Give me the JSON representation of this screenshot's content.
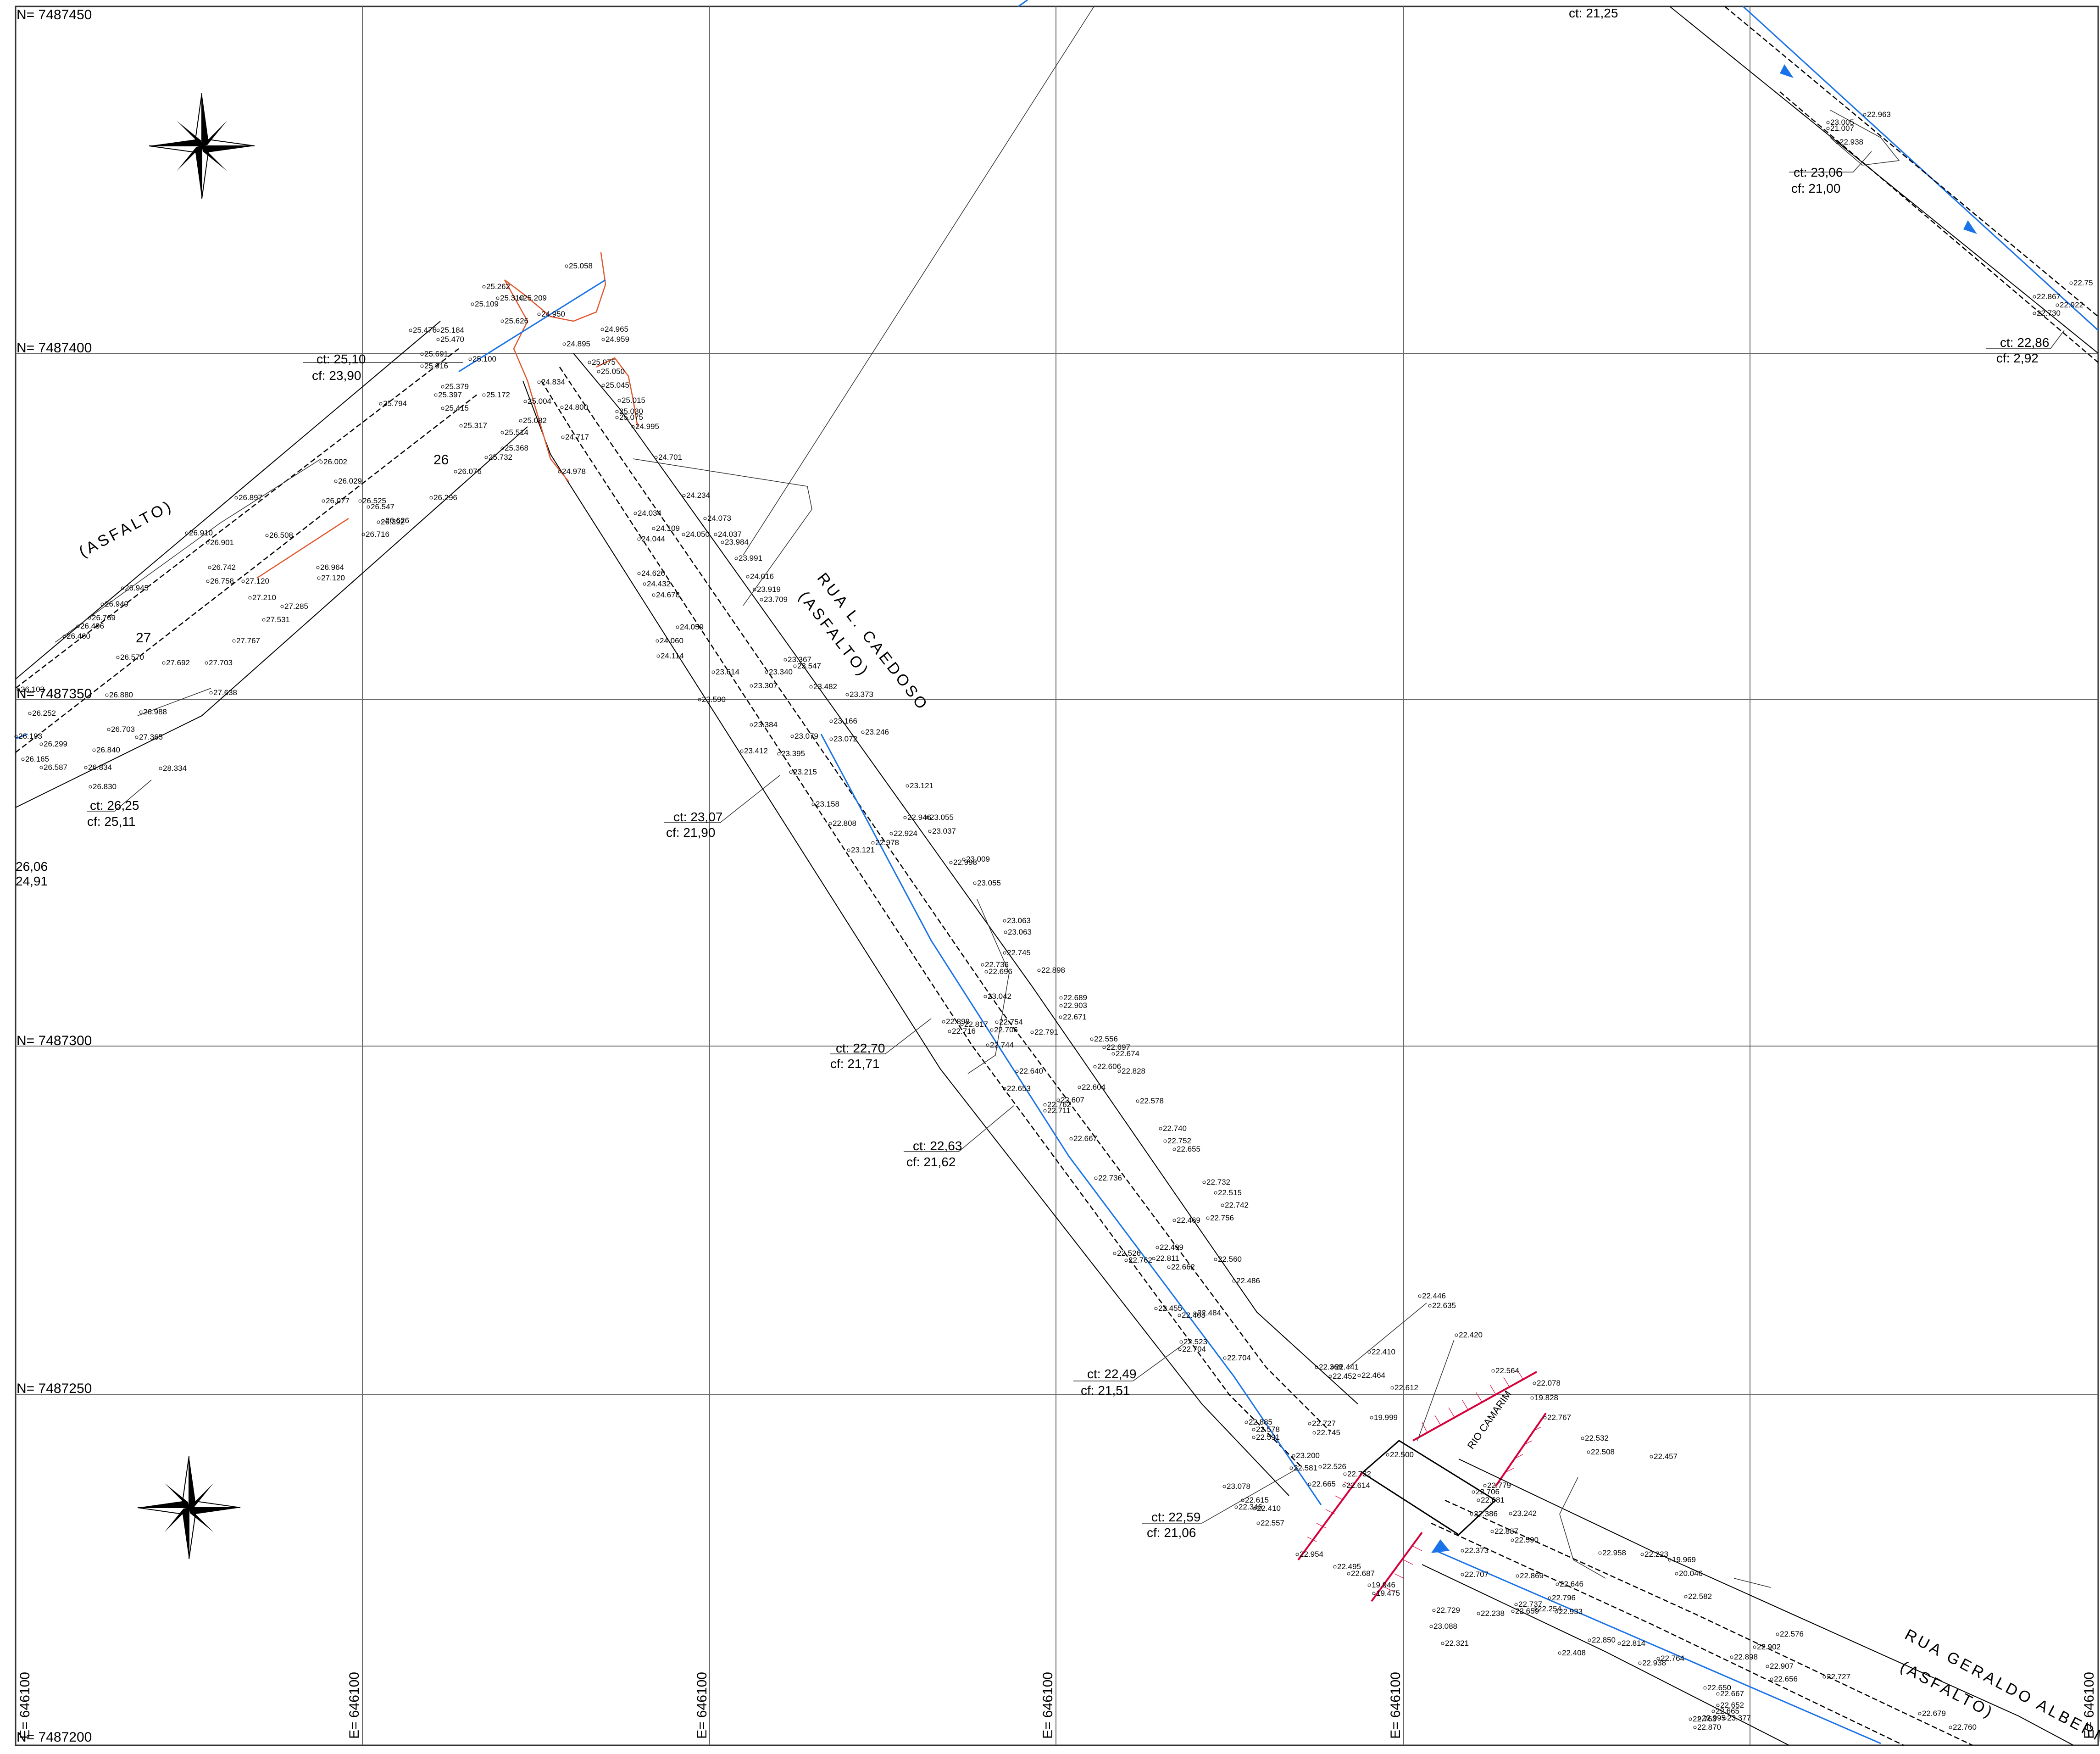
{
  "grid": {
    "northings": [
      "N= 7487450",
      "N= 7487400",
      "N= 7487350",
      "N= 7487300",
      "N= 7487250",
      "N= 7487200"
    ],
    "eastings": [
      "E= 646100",
      "E= 646100",
      "E= 646100",
      "E= 646100",
      "E= 646100",
      "E= 646100",
      "E= 646100"
    ]
  },
  "streets": {
    "asfalto_left": "(ASFALTO)",
    "rua_cardoso": "RUA L. CAEDOSO",
    "rua_cardoso_sub": "(ASFALTO)",
    "rua_geraldo": "RUA GERALDO ALBERN",
    "rua_geraldo_sub": "(ASFALTO)",
    "rio": "RIO CAMARIM"
  },
  "contours": [
    "26",
    "27"
  ],
  "ct_cf_labels": [
    {
      "ct": "ct: 21,25",
      "cf": ""
    },
    {
      "ct": "ct: 23,06",
      "cf": "cf: 21,00"
    },
    {
      "ct": "ct: 22,86",
      "cf": "cf: 2,92"
    },
    {
      "ct": "ct: 25,10",
      "cf": "cf: 23,90"
    },
    {
      "ct": "ct: 26,25",
      "cf": "cf: 25,11"
    },
    {
      "ct": "26,06",
      "cf": "24,91"
    },
    {
      "ct": "ct: 23,07",
      "cf": "cf: 21,90"
    },
    {
      "ct": "ct: 22,70",
      "cf": "cf: 21,71"
    },
    {
      "ct": "ct: 22,63",
      "cf": "cf: 21,62"
    },
    {
      "ct": "ct: 22,49",
      "cf": "cf: 21,51"
    },
    {
      "ct": "ct: 22,59",
      "cf": "cf: 21,06"
    }
  ],
  "elevations": [
    "22.963",
    "23.005",
    "21.007",
    "22.938",
    "22.75",
    "22.867",
    "22.922",
    "22.730",
    "25.058",
    "25.262",
    "25.310",
    "25.209",
    "25.109",
    "24.950",
    "25.626",
    "25.476",
    "25.184",
    "25.470",
    "25.691",
    "25.100",
    "24.965",
    "24.959",
    "24.895",
    "25.916",
    "25.075",
    "25.050",
    "24.834",
    "25.045",
    "25.379",
    "25.397",
    "25.172",
    "25.004",
    "25.015",
    "25.030",
    "24.800",
    "25.075",
    "25.794",
    "25.415",
    "24.995",
    "25.317",
    "25.082",
    "25.514",
    "24.717",
    "25.368",
    "25.732",
    "24.701",
    "26.002",
    "26.076",
    "24.978",
    "26.029",
    "26.897",
    "26.296",
    "24.234",
    "24.034",
    "24.073",
    "26.077",
    "26.525",
    "26.547",
    "26.626",
    "26.392",
    "24.109",
    "24.044",
    "24.050",
    "24.037",
    "23.984",
    "26.508",
    "26.716",
    "23.991",
    "24.016",
    "26.910",
    "26.901",
    "26.742",
    "26.964",
    "27.120",
    "24.626",
    "24.432",
    "23.919",
    "23.709",
    "26.945",
    "26.758",
    "27.120",
    "24.678",
    "27.210",
    "27.285",
    "26.949",
    "26.769",
    "27.531",
    "24.059",
    "26.496",
    "26.460",
    "27.767",
    "24.060",
    "24.114",
    "26.570",
    "27.692",
    "27.703",
    "23.367",
    "23.547",
    "23.614",
    "23.340",
    "23.307",
    "23.482",
    "23.373",
    "26.103",
    "26.880",
    "27.638",
    "23.590",
    "26.252",
    "26.988",
    "23.384",
    "23.166",
    "23.246",
    "26.703",
    "23.079",
    "23.072",
    "26.193",
    "26.299",
    "26.840",
    "27.365",
    "23.412",
    "23.395",
    "23.215",
    "26.165",
    "26.587",
    "26.834",
    "28.334",
    "26.830",
    "23.121",
    "23.158",
    "22.946",
    "23.055",
    "22.808",
    "22.924",
    "23.037",
    "22.978",
    "23.121",
    "23.009",
    "22.998",
    "23.055",
    "23.063",
    "23.063",
    "22.745",
    "22.736",
    "22.696",
    "22.898",
    "23.042",
    "22.689",
    "22.903",
    "22.898",
    "22.817",
    "22.754",
    "22.671",
    "22.716",
    "22.706",
    "22.791",
    "22.744",
    "22.556",
    "22.697",
    "22.674",
    "22.640",
    "22.606",
    "22.828",
    "22.653",
    "22.604",
    "22.607",
    "22.762",
    "22.578",
    "22.711",
    "22.740",
    "22.752",
    "22.655",
    "22.667",
    "22.732",
    "22.736",
    "22.515",
    "22.742",
    "22.756",
    "22.469",
    "22.499",
    "22.526",
    "22.762",
    "22.811",
    "22.662",
    "22.560",
    "22.486",
    "22.455",
    "22.403",
    "22.484",
    "22.523",
    "22.704",
    "22.704",
    "22.446",
    "22.635",
    "22.420",
    "22.410",
    "22.368",
    "22.441",
    "22.452",
    "22.464",
    "22.612",
    "22.564",
    "22.078",
    "19.828",
    "19.999",
    "22.885",
    "22.727",
    "22.578",
    "22.745",
    "22.591",
    "22.767",
    "22.500",
    "23.200",
    "22.532",
    "22.508",
    "22.457",
    "22.581",
    "22.526",
    "22.732",
    "23.078",
    "22.665",
    "22.614",
    "22.779",
    "22.706",
    "22.681",
    "22.615",
    "22.410",
    "22.346",
    "22.386",
    "23.242",
    "22.887",
    "22.557",
    "22.590",
    "22.373",
    "22.954",
    "22.958",
    "22.223",
    "22.495",
    "22.687",
    "19.946",
    "19.475",
    "19.969",
    "20.046",
    "22.707",
    "22.869",
    "22.646",
    "22.796",
    "22.737",
    "22.659",
    "22.933",
    "22.582",
    "22.729",
    "22.238",
    "22.254",
    "23.088",
    "22.850",
    "22.321",
    "22.814",
    "22.576",
    "22.902",
    "22.408",
    "22.764",
    "22.907",
    "22.656",
    "22.727",
    "22.938",
    "22.898",
    "22.650",
    "22.667",
    "22.652",
    "22.665",
    "22.995",
    "22.679",
    "22.763",
    "23.377",
    "22.760",
    "22.870"
  ]
}
